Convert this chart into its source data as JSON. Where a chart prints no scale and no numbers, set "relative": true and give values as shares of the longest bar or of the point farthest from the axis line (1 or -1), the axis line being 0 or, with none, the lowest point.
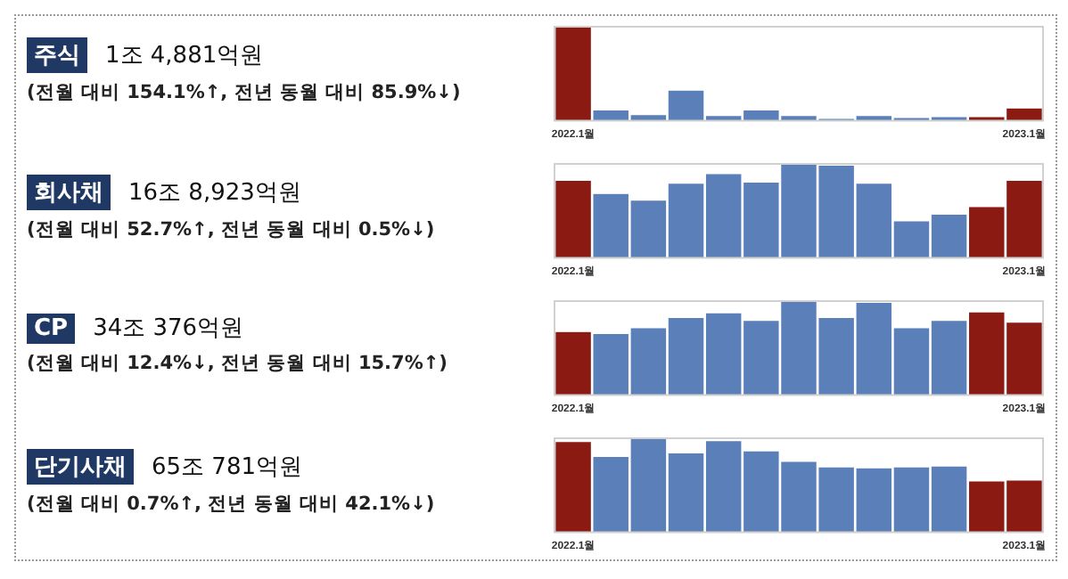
{
  "chart_data": [
    {
      "type": "bar",
      "annotations": [
        "주식",
        "1조 4,881억원",
        "(전월 대비 154.1%↑, 전년 동월 대비 85.9%↓)"
      ],
      "relative": true,
      "categories": [
        "2022.1월",
        null,
        null,
        null,
        null,
        null,
        null,
        null,
        null,
        null,
        null,
        null,
        "2023.1월"
      ],
      "values": [
        1,
        0.11,
        0.06,
        0.32,
        0.05,
        0.11,
        0.05,
        0.02,
        0.05,
        0.03,
        0.04,
        0.04,
        0.13
      ],
      "colors": [
        "#8b1a12",
        "#5b80b9",
        "#5b80b9",
        "#5b80b9",
        "#5b80b9",
        "#5b80b9",
        "#5b80b9",
        "#5b80b9",
        "#5b80b9",
        "#5b80b9",
        "#5b80b9",
        "#8b1a12",
        "#8b1a12"
      ],
      "grid": false,
      "legend": false
    },
    {
      "type": "bar",
      "annotations": [
        "회사채",
        "16조 8,923억원",
        "(전월 대비 52.7%↑, 전년 동월 대비 0.5%↓)"
      ],
      "relative": true,
      "categories": [
        "2022.1월",
        null,
        null,
        null,
        null,
        null,
        null,
        null,
        null,
        null,
        null,
        null,
        "2023.1월"
      ],
      "values": [
        0.82,
        0.68,
        0.61,
        0.79,
        0.89,
        0.8,
        1,
        0.98,
        0.79,
        0.39,
        0.46,
        0.54,
        0.82
      ],
      "colors": [
        "#8b1a12",
        "#5b80b9",
        "#5b80b9",
        "#5b80b9",
        "#5b80b9",
        "#5b80b9",
        "#5b80b9",
        "#5b80b9",
        "#5b80b9",
        "#5b80b9",
        "#5b80b9",
        "#8b1a12",
        "#8b1a12"
      ],
      "grid": false,
      "legend": false
    },
    {
      "type": "bar",
      "annotations": [
        "CP",
        "34조 376억원",
        "(전월 대비 12.4%↓, 전년 동월 대비 15.7%↑)"
      ],
      "relative": true,
      "categories": [
        "2022.1월",
        null,
        null,
        null,
        null,
        null,
        null,
        null,
        null,
        null,
        null,
        null,
        "2023.1월"
      ],
      "values": [
        0.67,
        0.65,
        0.71,
        0.82,
        0.87,
        0.79,
        1,
        0.82,
        0.98,
        0.71,
        0.79,
        0.88,
        0.77
      ],
      "colors": [
        "#8b1a12",
        "#5b80b9",
        "#5b80b9",
        "#5b80b9",
        "#5b80b9",
        "#5b80b9",
        "#5b80b9",
        "#5b80b9",
        "#5b80b9",
        "#5b80b9",
        "#5b80b9",
        "#8b1a12",
        "#8b1a12"
      ],
      "grid": false,
      "legend": false
    },
    {
      "type": "bar",
      "annotations": [
        "단기사채",
        "65조 781억원",
        "(전월 대비 0.7%↑, 전년 동월 대비 42.1%↓)"
      ],
      "relative": true,
      "categories": [
        "2022.1월",
        null,
        null,
        null,
        null,
        null,
        null,
        null,
        null,
        null,
        null,
        null,
        "2023.1월"
      ],
      "values": [
        0.96,
        0.8,
        1,
        0.84,
        0.97,
        0.86,
        0.75,
        0.69,
        0.68,
        0.69,
        0.7,
        0.54,
        0.55
      ],
      "colors": [
        "#8b1a12",
        "#5b80b9",
        "#5b80b9",
        "#5b80b9",
        "#5b80b9",
        "#5b80b9",
        "#5b80b9",
        "#5b80b9",
        "#5b80b9",
        "#5b80b9",
        "#5b80b9",
        "#8b1a12",
        "#8b1a12"
      ],
      "grid": false,
      "legend": false
    }
  ]
}
